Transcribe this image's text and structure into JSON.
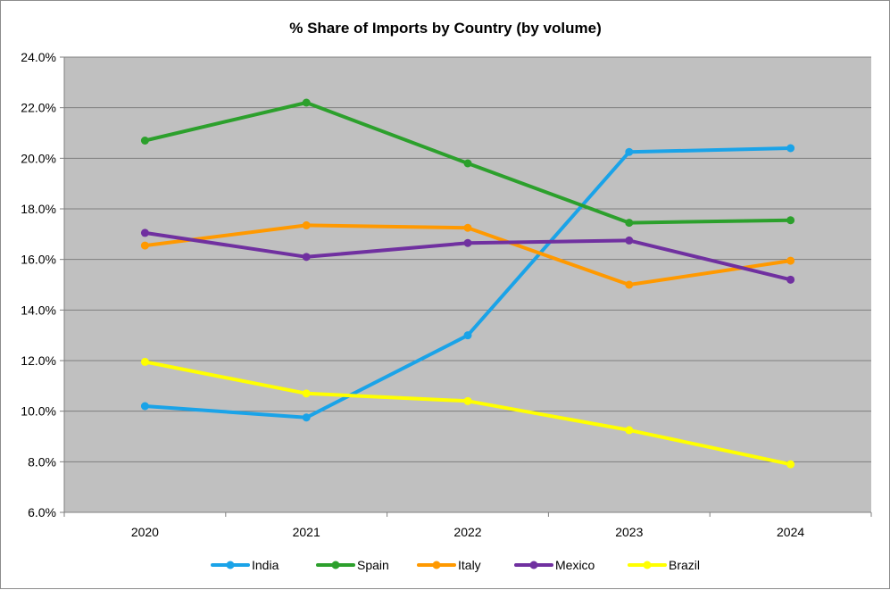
{
  "chart_data": {
    "type": "line",
    "title": "% Share of Imports by Country (by volume)",
    "xlabel": "",
    "ylabel": "",
    "categories": [
      "2020",
      "2021",
      "2022",
      "2023",
      "2024"
    ],
    "ylim": [
      6.0,
      24.0
    ],
    "yticks": [
      6.0,
      8.0,
      10.0,
      12.0,
      14.0,
      16.0,
      18.0,
      20.0,
      22.0,
      24.0
    ],
    "y_tick_format": "percent_1dp",
    "grid": true,
    "legend_position": "bottom",
    "plot_background": "#c0c0c0",
    "series": [
      {
        "name": "India",
        "color": "#1aa3e8",
        "values": [
          10.2,
          9.75,
          13.0,
          20.25,
          20.4
        ]
      },
      {
        "name": "Spain",
        "color": "#2ca02c",
        "values": [
          20.7,
          22.2,
          19.8,
          17.45,
          17.55
        ]
      },
      {
        "name": "Italy",
        "color": "#ff9900",
        "values": [
          16.55,
          17.35,
          17.25,
          15.0,
          15.95
        ]
      },
      {
        "name": "Mexico",
        "color": "#7030a0",
        "values": [
          17.05,
          16.1,
          16.65,
          16.75,
          15.2
        ]
      },
      {
        "name": "Brazil",
        "color": "#ffff00",
        "values": [
          11.95,
          10.7,
          10.4,
          9.25,
          7.9
        ]
      }
    ]
  }
}
